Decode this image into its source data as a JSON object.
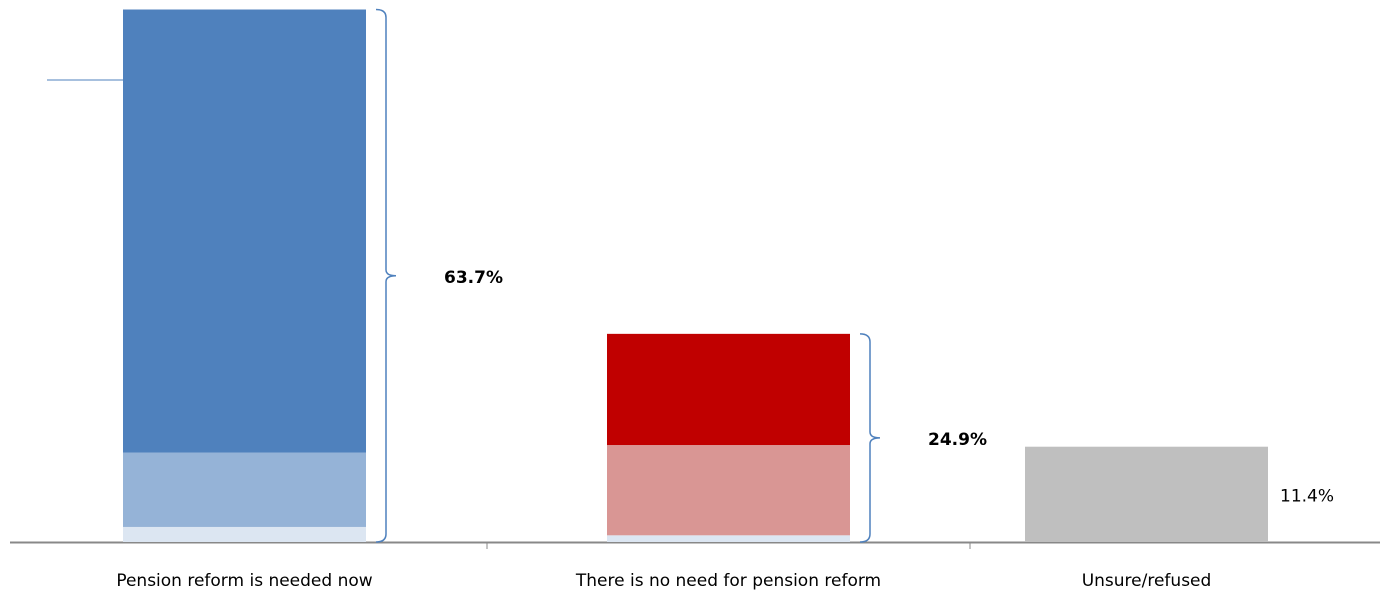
{
  "chart_data": {
    "type": "stacked-bar",
    "categories": [
      "Pension reform is needed now",
      "There is no need for pension reform",
      "Unsure/refused"
    ],
    "stacks": [
      {
        "values": [
          1.8,
          8.9,
          53.0
        ],
        "colors": [
          "#dce6f2",
          "#95b3d7",
          "#4f81bd"
        ]
      },
      {
        "values": [
          0.8,
          10.8,
          13.3
        ],
        "colors": [
          "#dce6f2",
          "#d99694",
          "#c00000"
        ]
      },
      {
        "values": [
          11.4
        ],
        "colors": [
          "#bfbfbf"
        ]
      }
    ],
    "totals": [
      63.7,
      24.9,
      11.4
    ],
    "total_labels": [
      "63.7%",
      "24.9%",
      "11.4%"
    ],
    "ylim": [
      0,
      64
    ]
  }
}
